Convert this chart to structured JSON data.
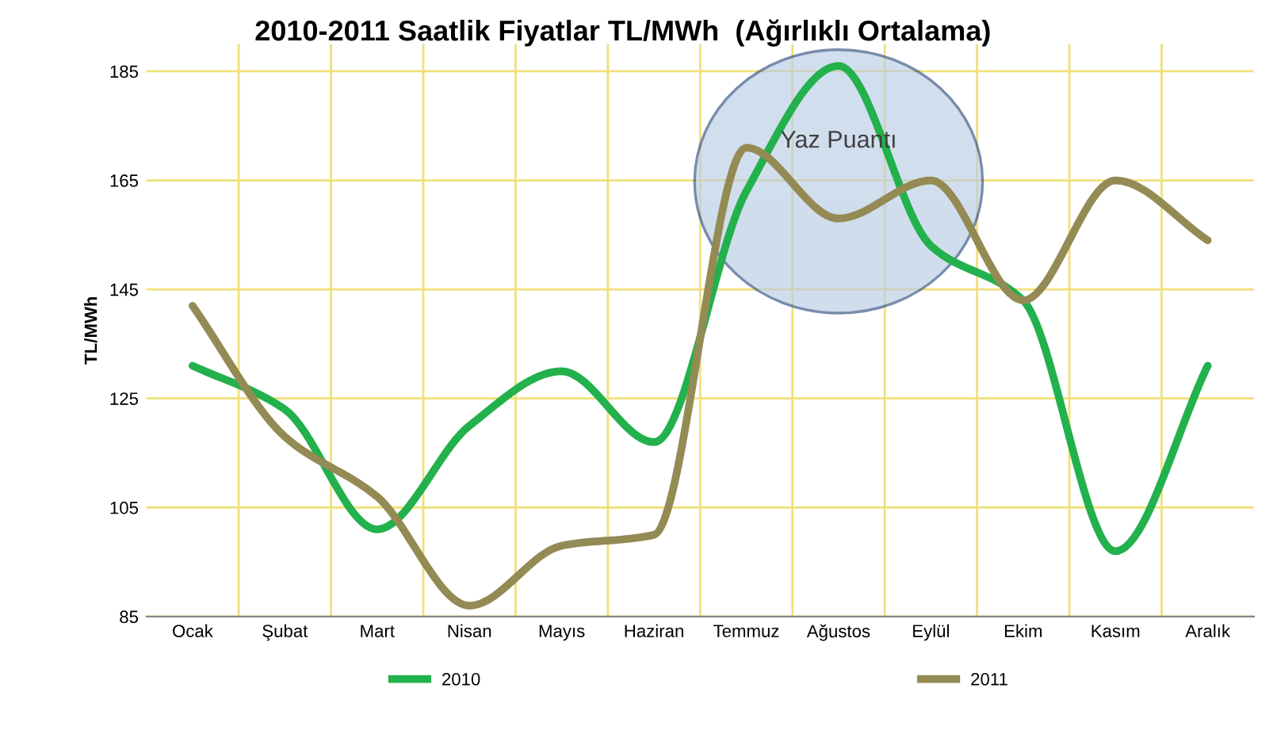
{
  "chart_data": {
    "type": "line",
    "title": "2010-2011 Saatlik Fiyatlar TL/MWh  (Ağırlıklı Ortalama)",
    "ylabel": "TL/MWh",
    "categories": [
      "Ocak",
      "Şubat",
      "Mart",
      "Nisan",
      "Mayıs",
      "Haziran",
      "Temmuz",
      "Ağustos",
      "Eylül",
      "Ekim",
      "Kasım",
      "Aralık"
    ],
    "series": [
      {
        "name": "2010",
        "color": "#22b14c",
        "values": [
          131,
          123,
          101,
          120,
          130,
          117,
          163,
          186,
          153,
          143,
          97,
          131
        ]
      },
      {
        "name": "2011",
        "color": "#948a54",
        "values": [
          142,
          118,
          107,
          87,
          98,
          100,
          171,
          158,
          165,
          143,
          165,
          154
        ]
      }
    ],
    "ylim": [
      85,
      190
    ],
    "yticks": [
      85,
      105,
      125,
      145,
      165,
      185
    ],
    "grid": true,
    "legend": "bottom",
    "marker": "none",
    "line_style": "solid",
    "annotations": [
      "Yaz Puantı"
    ]
  }
}
